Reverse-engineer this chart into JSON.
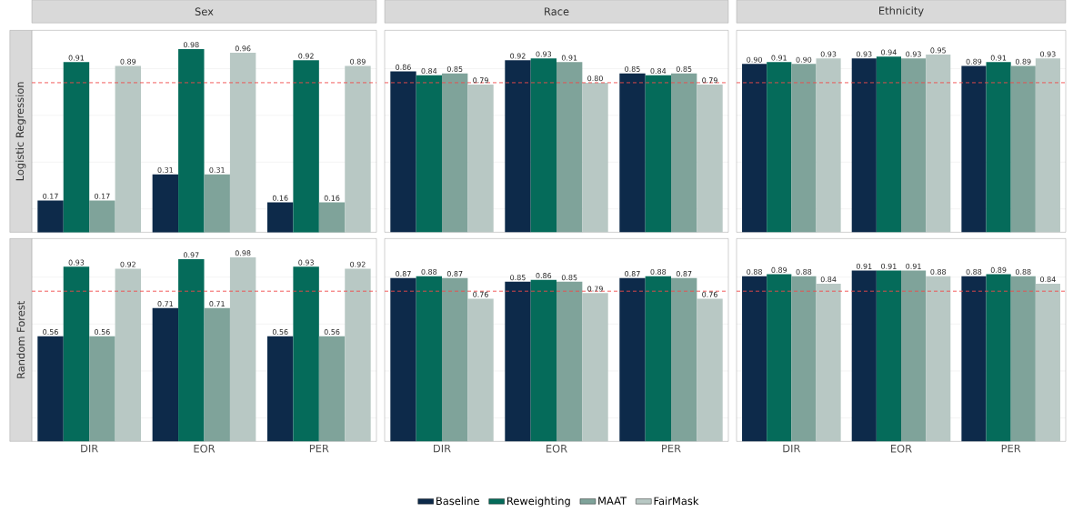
{
  "chart_data": [
    {
      "type": "bar",
      "title": "Sex",
      "ylabel": "Logistic Regression",
      "categories": [
        null,
        null,
        null
      ],
      "ylim": [
        0,
        1.08
      ],
      "yticks": [
        {
          "value": 0.125,
          "label": null
        },
        {
          "value": 0.375,
          "label": null
        },
        {
          "value": 0.625,
          "label": null
        },
        {
          "value": 0.875,
          "label": null
        }
      ],
      "grid": "y",
      "legend": "bottom",
      "ref_lines": [
        {
          "axis": "y",
          "value": 0.8,
          "color": "#f04a4a",
          "line_style": "dashed"
        }
      ],
      "series": [
        {
          "name": "Baseline",
          "color": "#0d2a4a",
          "values": [
            0.17,
            0.31,
            0.16
          ],
          "value_labels": [
            "0.17",
            "0.31",
            "0.16"
          ]
        },
        {
          "name": "Reweighting",
          "color": "#056b5a",
          "values": [
            0.91,
            0.98,
            0.92
          ],
          "value_labels": [
            "0.91",
            "0.98",
            "0.92"
          ]
        },
        {
          "name": "MAAT",
          "color": "#7fa39a",
          "values": [
            0.17,
            0.31,
            0.16
          ],
          "value_labels": [
            "0.17",
            "0.31",
            "0.16"
          ]
        },
        {
          "name": "FairMask",
          "color": "#b8c8c4",
          "values": [
            0.89,
            0.96,
            0.89
          ],
          "value_labels": [
            "0.89",
            "0.96",
            "0.89"
          ]
        }
      ]
    },
    {
      "type": "bar",
      "title": "Race",
      "categories": [
        null,
        null,
        null
      ],
      "ylim": [
        0,
        1.08
      ],
      "yticks": [
        {
          "value": 0.125,
          "label": null
        },
        {
          "value": 0.375,
          "label": null
        },
        {
          "value": 0.625,
          "label": null
        },
        {
          "value": 0.875,
          "label": null
        }
      ],
      "grid": "y",
      "ref_lines": [
        {
          "axis": "y",
          "value": 0.8,
          "color": "#f04a4a",
          "line_style": "dashed"
        }
      ],
      "series": [
        {
          "color": "#0d2a4a",
          "values": [
            0.86,
            0.92,
            0.85
          ],
          "value_labels": [
            "0.86",
            "0.92",
            "0.85"
          ]
        },
        {
          "color": "#056b5a",
          "values": [
            0.84,
            0.93,
            0.84
          ],
          "value_labels": [
            "0.84",
            "0.93",
            "0.84"
          ]
        },
        {
          "color": "#7fa39a",
          "values": [
            0.85,
            0.91,
            0.85
          ],
          "value_labels": [
            "0.85",
            "0.91",
            "0.85"
          ]
        },
        {
          "color": "#b8c8c4",
          "values": [
            0.79,
            0.8,
            0.79
          ],
          "value_labels": [
            "0.79",
            "0.80",
            "0.79"
          ]
        }
      ]
    },
    {
      "type": "bar",
      "title": "Ethnicity",
      "categories": [
        null,
        null,
        null
      ],
      "ylim": [
        0,
        1.08
      ],
      "yticks": [
        {
          "value": 0.125,
          "label": null
        },
        {
          "value": 0.375,
          "label": null
        },
        {
          "value": 0.625,
          "label": null
        },
        {
          "value": 0.875,
          "label": null
        }
      ],
      "grid": "y",
      "ref_lines": [
        {
          "axis": "y",
          "value": 0.8,
          "color": "#f04a4a",
          "line_style": "dashed"
        }
      ],
      "series": [
        {
          "color": "#0d2a4a",
          "values": [
            0.9,
            0.93,
            0.89
          ],
          "value_labels": [
            "0.90",
            "0.93",
            "0.89"
          ]
        },
        {
          "color": "#056b5a",
          "values": [
            0.91,
            0.94,
            0.91
          ],
          "value_labels": [
            "0.91",
            "0.94",
            "0.91"
          ]
        },
        {
          "color": "#7fa39a",
          "values": [
            0.9,
            0.93,
            0.89
          ],
          "value_labels": [
            "0.90",
            "0.93",
            "0.89"
          ]
        },
        {
          "color": "#b8c8c4",
          "values": [
            0.93,
            0.95,
            0.93
          ],
          "value_labels": [
            "0.93",
            "0.95",
            "0.93"
          ]
        }
      ]
    },
    {
      "type": "bar",
      "ylabel": "Random Forest",
      "categories": [
        "DIR",
        "EOR",
        "PER"
      ],
      "tick_labels": "x",
      "ylim": [
        0,
        1.08
      ],
      "yticks": [
        {
          "value": 0.125,
          "label": null
        },
        {
          "value": 0.375,
          "label": null
        },
        {
          "value": 0.625,
          "label": null
        },
        {
          "value": 0.875,
          "label": null
        }
      ],
      "grid": "y",
      "ref_lines": [
        {
          "axis": "y",
          "value": 0.8,
          "color": "#f04a4a",
          "line_style": "dashed"
        }
      ],
      "series": [
        {
          "color": "#0d2a4a",
          "values": [
            0.56,
            0.71,
            0.56
          ],
          "value_labels": [
            "0.56",
            "0.71",
            "0.56"
          ]
        },
        {
          "color": "#056b5a",
          "values": [
            0.93,
            0.97,
            0.93
          ],
          "value_labels": [
            "0.93",
            "0.97",
            "0.93"
          ]
        },
        {
          "color": "#7fa39a",
          "values": [
            0.56,
            0.71,
            0.56
          ],
          "value_labels": [
            "0.56",
            "0.71",
            "0.56"
          ]
        },
        {
          "color": "#b8c8c4",
          "values": [
            0.92,
            0.98,
            0.92
          ],
          "value_labels": [
            "0.92",
            "0.98",
            "0.92"
          ]
        }
      ]
    },
    {
      "type": "bar",
      "categories": [
        "DIR",
        "EOR",
        "PER"
      ],
      "tick_labels": "x",
      "ylim": [
        0,
        1.08
      ],
      "yticks": [
        {
          "value": 0.125,
          "label": null
        },
        {
          "value": 0.375,
          "label": null
        },
        {
          "value": 0.625,
          "label": null
        },
        {
          "value": 0.875,
          "label": null
        }
      ],
      "grid": "y",
      "ref_lines": [
        {
          "axis": "y",
          "value": 0.8,
          "color": "#f04a4a",
          "line_style": "dashed"
        }
      ],
      "series": [
        {
          "color": "#0d2a4a",
          "values": [
            0.87,
            0.85,
            0.87
          ],
          "value_labels": [
            "0.87",
            "0.85",
            "0.87"
          ]
        },
        {
          "color": "#056b5a",
          "values": [
            0.88,
            0.86,
            0.88
          ],
          "value_labels": [
            "0.88",
            "0.86",
            "0.88"
          ]
        },
        {
          "color": "#7fa39a",
          "values": [
            0.87,
            0.85,
            0.87
          ],
          "value_labels": [
            "0.87",
            "0.85",
            "0.87"
          ]
        },
        {
          "color": "#b8c8c4",
          "values": [
            0.76,
            0.79,
            0.76
          ],
          "value_labels": [
            "0.76",
            "0.79",
            "0.76"
          ]
        }
      ]
    },
    {
      "type": "bar",
      "categories": [
        "DIR",
        "EOR",
        "PER"
      ],
      "tick_labels": "x",
      "ylim": [
        0,
        1.08
      ],
      "yticks": [
        {
          "value": 0.125,
          "label": null
        },
        {
          "value": 0.375,
          "label": null
        },
        {
          "value": 0.625,
          "label": null
        },
        {
          "value": 0.875,
          "label": null
        }
      ],
      "grid": "y",
      "ref_lines": [
        {
          "axis": "y",
          "value": 0.8,
          "color": "#f04a4a",
          "line_style": "dashed"
        }
      ],
      "series": [
        {
          "color": "#0d2a4a",
          "values": [
            0.88,
            0.91,
            0.88
          ],
          "value_labels": [
            "0.88",
            "0.91",
            "0.88"
          ]
        },
        {
          "color": "#056b5a",
          "values": [
            0.89,
            0.91,
            0.89
          ],
          "value_labels": [
            "0.89",
            "0.91",
            "0.89"
          ]
        },
        {
          "color": "#7fa39a",
          "values": [
            0.88,
            0.91,
            0.88
          ],
          "value_labels": [
            "0.88",
            "0.91",
            "0.88"
          ]
        },
        {
          "color": "#b8c8c4",
          "values": [
            0.84,
            0.88,
            0.84
          ],
          "value_labels": [
            "0.84",
            "0.88",
            "0.84"
          ]
        }
      ]
    }
  ]
}
